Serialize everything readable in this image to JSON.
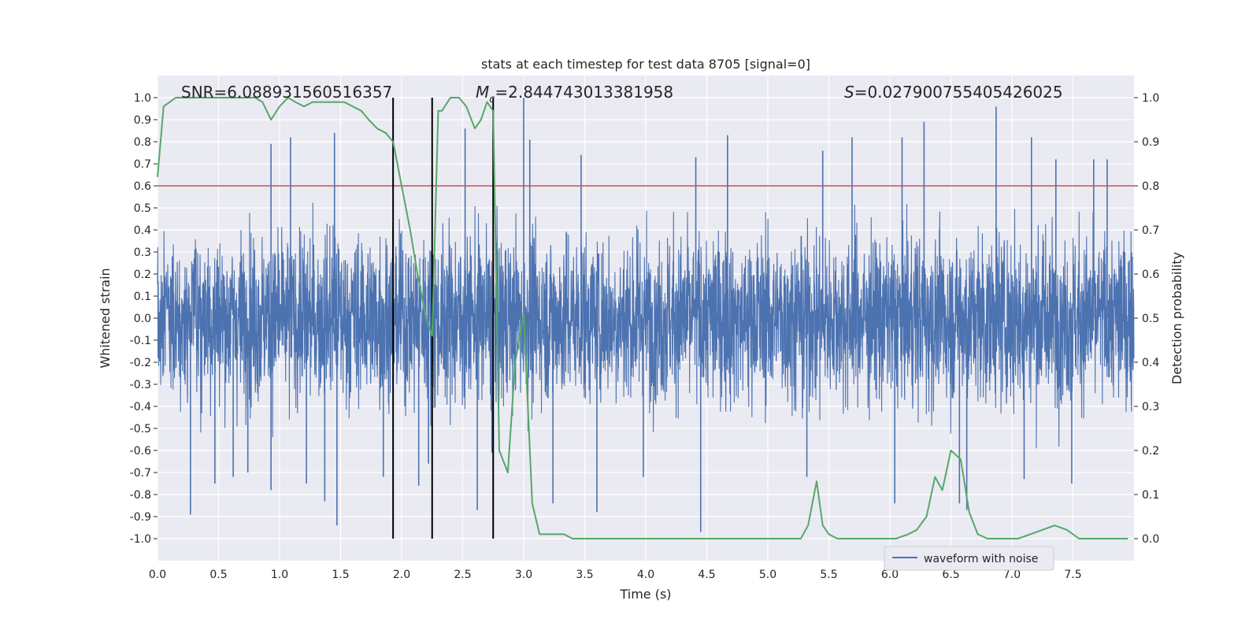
{
  "chart_data": {
    "type": "line",
    "title": "stats at each timestep for test data 8705 [signal=0]",
    "xlabel": "Time (s)",
    "ylabel": "Whitened strain",
    "y2label": "Detection probability",
    "xlim": [
      0,
      8
    ],
    "ylim": [
      -1.1,
      1.1
    ],
    "y2lim": [
      -0.05,
      1.05
    ],
    "xticks": [
      "0.0",
      "0.5",
      "1.0",
      "1.5",
      "2.0",
      "2.5",
      "3.0",
      "3.5",
      "4.0",
      "4.5",
      "5.0",
      "5.5",
      "6.0",
      "6.5",
      "7.0",
      "7.5"
    ],
    "yticks": [
      "1.0",
      "0.9",
      "0.8",
      "0.7",
      "0.6",
      "0.5",
      "0.4",
      "0.3",
      "0.2",
      "0.1",
      "0.0",
      "-0.1",
      "-0.2",
      "-0.3",
      "-0.4",
      "-0.5",
      "-0.6",
      "-0.7",
      "-0.8",
      "-0.9",
      "-1.0"
    ],
    "y2ticks": [
      "1.0",
      "0.9",
      "0.8",
      "0.7",
      "0.6",
      "0.5",
      "0.4",
      "0.3",
      "0.2",
      "0.1",
      "0.0"
    ],
    "annotations": {
      "snr": "SNR=6.088931560516357",
      "mc_symbol": "M",
      "mc_sub": "c",
      "mc_value": "=2.844743013381958",
      "s_symbol": "S",
      "s_value": "=0.027900755405426025"
    },
    "threshold": 0.8,
    "vlines": [
      1.93,
      2.25,
      2.75
    ],
    "legend": {
      "label": "waveform with noise",
      "position": "bottom-right"
    },
    "series": [
      {
        "name": "waveform with noise",
        "axis": "left",
        "color": "#4c72b0",
        "style": "dense noise, typical amplitude ~0.45, peaks up to ~1.0",
        "spikes": [
          [
            0.27,
            -0.89
          ],
          [
            0.47,
            -0.75
          ],
          [
            0.62,
            -0.72
          ],
          [
            0.74,
            -0.7
          ],
          [
            0.93,
            0.79
          ],
          [
            0.93,
            -0.78
          ],
          [
            1.09,
            0.82
          ],
          [
            1.22,
            -0.75
          ],
          [
            1.37,
            -0.83
          ],
          [
            1.45,
            0.84
          ],
          [
            1.47,
            -0.94
          ],
          [
            1.85,
            -0.72
          ],
          [
            2.14,
            -0.76
          ],
          [
            2.22,
            -0.66
          ],
          [
            2.52,
            0.86
          ],
          [
            2.62,
            -0.87
          ],
          [
            2.74,
            -0.61
          ],
          [
            3.0,
            1.0
          ],
          [
            3.05,
            0.81
          ],
          [
            3.24,
            -0.84
          ],
          [
            3.47,
            0.74
          ],
          [
            3.6,
            -0.88
          ],
          [
            3.98,
            -0.72
          ],
          [
            4.41,
            0.73
          ],
          [
            4.45,
            -0.97
          ],
          [
            4.67,
            0.83
          ],
          [
            5.32,
            -0.72
          ],
          [
            5.45,
            0.76
          ],
          [
            5.69,
            0.82
          ],
          [
            6.04,
            -0.84
          ],
          [
            6.1,
            0.82
          ],
          [
            6.28,
            0.89
          ],
          [
            6.57,
            -0.84
          ],
          [
            6.63,
            -0.87
          ],
          [
            6.87,
            0.96
          ],
          [
            7.1,
            -0.73
          ],
          [
            7.16,
            0.82
          ],
          [
            7.36,
            0.72
          ],
          [
            7.49,
            -0.75
          ],
          [
            7.67,
            0.72
          ],
          [
            7.78,
            0.72
          ]
        ]
      },
      {
        "name": "Detection probability",
        "axis": "right",
        "color": "#55a868",
        "x": [
          0.0,
          0.05,
          0.1,
          0.15,
          0.2,
          0.3,
          0.4,
          0.5,
          0.6,
          0.7,
          0.8,
          0.86,
          0.93,
          1.0,
          1.07,
          1.13,
          1.2,
          1.27,
          1.33,
          1.4,
          1.47,
          1.53,
          1.6,
          1.67,
          1.73,
          1.8,
          1.87,
          1.93,
          2.0,
          2.07,
          2.13,
          2.2,
          2.25,
          2.3,
          2.33,
          2.4,
          2.47,
          2.53,
          2.6,
          2.65,
          2.7,
          2.75,
          2.8,
          2.87,
          2.93,
          3.0,
          3.07,
          3.13,
          3.2,
          3.27,
          3.33,
          3.4,
          3.5,
          3.6,
          3.7,
          3.8,
          3.9,
          4.0,
          4.2,
          4.4,
          4.6,
          4.7,
          4.8,
          4.9,
          5.0,
          5.1,
          5.2,
          5.27,
          5.33,
          5.4,
          5.45,
          5.5,
          5.57,
          5.65,
          5.75,
          5.85,
          5.95,
          6.05,
          6.15,
          6.22,
          6.3,
          6.37,
          6.43,
          6.5,
          6.58,
          6.65,
          6.72,
          6.8,
          6.88,
          6.95,
          7.05,
          7.15,
          7.25,
          7.35,
          7.45,
          7.55,
          7.65,
          7.75,
          7.85,
          7.95
        ],
        "values": [
          0.82,
          0.98,
          0.99,
          1.0,
          1.0,
          1.0,
          1.0,
          1.0,
          1.0,
          1.0,
          1.0,
          0.99,
          0.95,
          0.98,
          1.0,
          0.99,
          0.98,
          0.99,
          0.99,
          0.99,
          0.99,
          0.99,
          0.98,
          0.97,
          0.95,
          0.93,
          0.92,
          0.9,
          0.8,
          0.7,
          0.6,
          0.5,
          0.46,
          0.97,
          0.97,
          1.0,
          1.0,
          0.98,
          0.93,
          0.95,
          0.99,
          0.97,
          0.2,
          0.15,
          0.4,
          0.51,
          0.08,
          0.01,
          0.01,
          0.01,
          0.01,
          0.0,
          0.0,
          0.0,
          0.0,
          0.0,
          0.0,
          0.0,
          0.0,
          0.0,
          0.0,
          0.0,
          0.0,
          0.0,
          0.0,
          0.0,
          0.0,
          0.0,
          0.03,
          0.13,
          0.03,
          0.01,
          0.0,
          0.0,
          0.0,
          0.0,
          0.0,
          0.0,
          0.01,
          0.02,
          0.05,
          0.14,
          0.11,
          0.2,
          0.18,
          0.06,
          0.01,
          0.0,
          0.0,
          0.0,
          0.0,
          0.01,
          0.02,
          0.03,
          0.02,
          0.0,
          0.0,
          0.0,
          0.0,
          0.0
        ]
      }
    ]
  }
}
